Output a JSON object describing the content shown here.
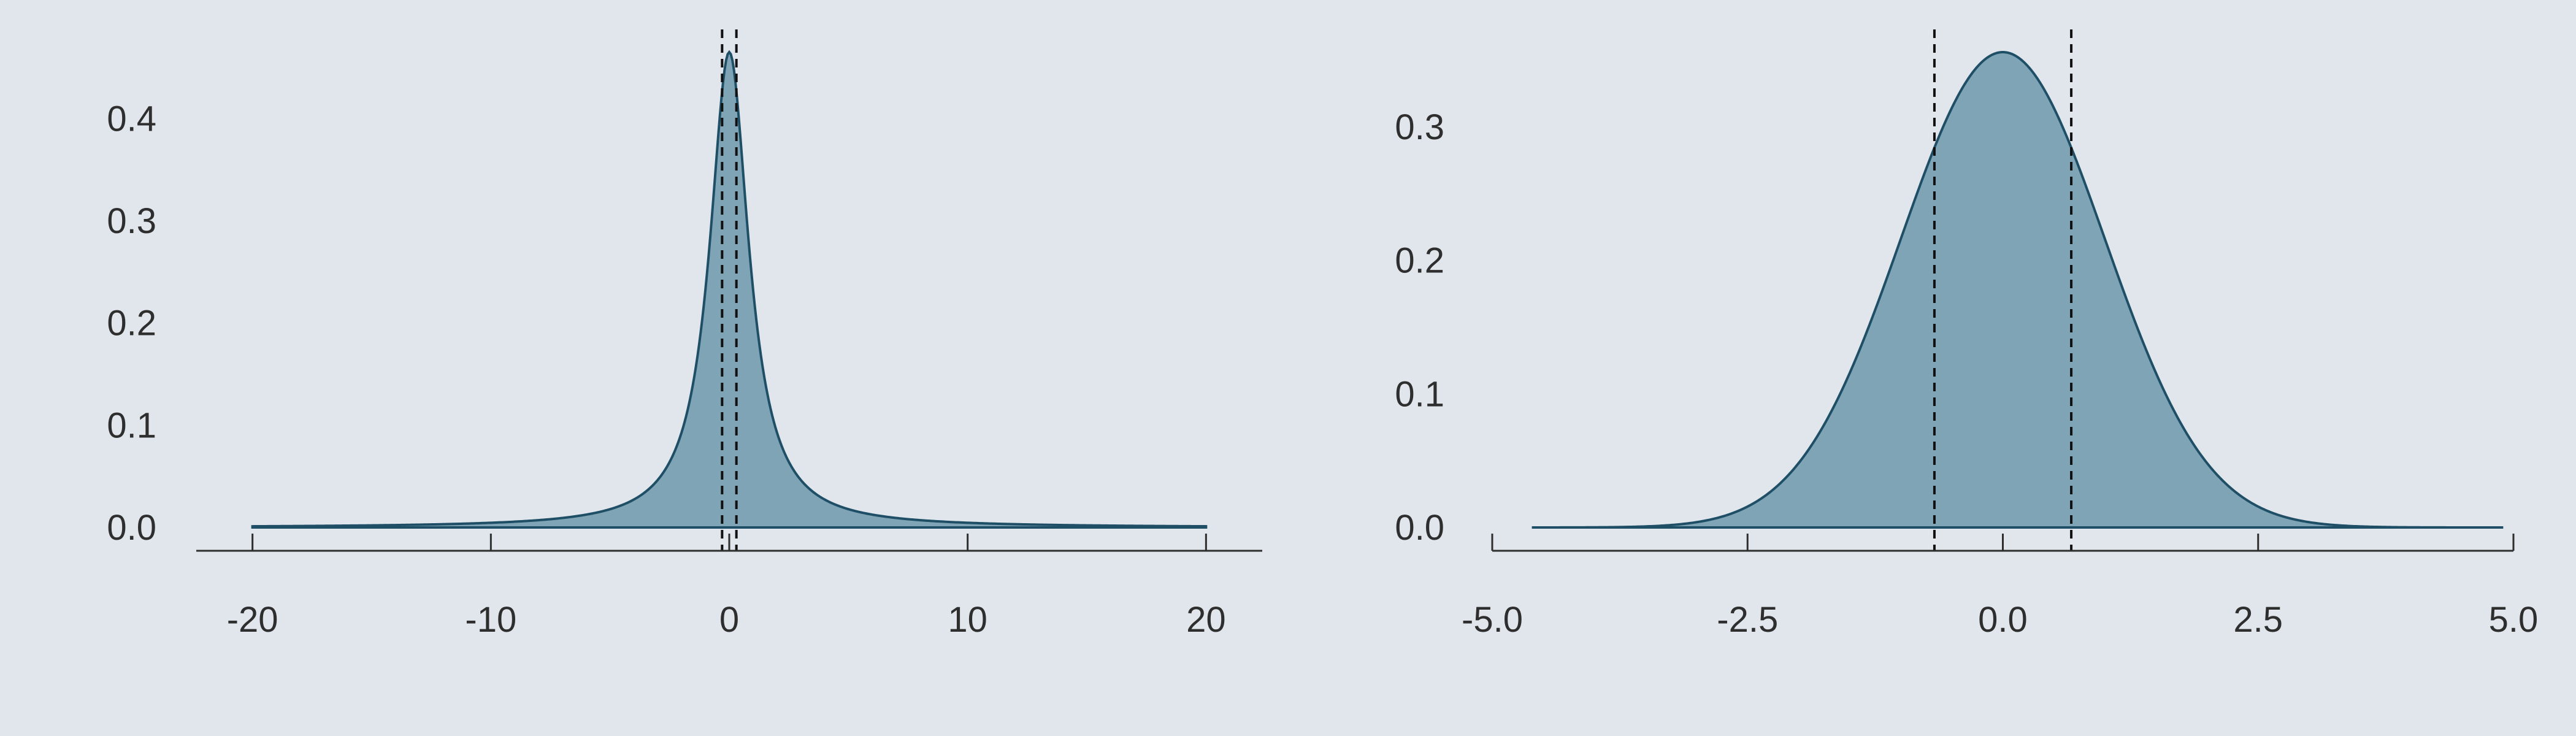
{
  "colors": {
    "background": "#e0e6ec",
    "fill": "#7fa4b5",
    "stroke": "#1f4f66",
    "text": "#2e2e2e"
  },
  "chart_data": [
    {
      "type": "area",
      "distribution": "cauchy",
      "x_range": [
        -20,
        20
      ],
      "xlim": [
        -20.3,
        20.3
      ],
      "ylim": [
        0,
        0.47
      ],
      "grid": false,
      "legend": "none",
      "density_peak": 0.465,
      "xticks": [
        -20,
        -10,
        0,
        10,
        20
      ],
      "xtick_labels": [
        "-20",
        "-10",
        "0",
        "10",
        "20"
      ],
      "yticks": [
        0.0,
        0.1,
        0.2,
        0.3,
        0.4
      ],
      "ytick_labels": [
        "0.0",
        "0.1",
        "0.2",
        "0.3",
        "0.4"
      ],
      "vlines": [
        -0.3,
        0.3
      ]
    },
    {
      "type": "area",
      "distribution": "normal",
      "x_range": [
        -4.6,
        4.9
      ],
      "xlim": [
        -5.0,
        5.0
      ],
      "ylim": [
        0,
        0.36
      ],
      "grid": false,
      "legend": "none",
      "density_peak": 0.356,
      "xticks": [
        -5.0,
        -2.5,
        0.0,
        2.5,
        5.0
      ],
      "xtick_labels": [
        "-5.0",
        "-2.5",
        "0.0",
        "2.5",
        "5.0"
      ],
      "yticks": [
        0.0,
        0.1,
        0.2,
        0.3
      ],
      "ytick_labels": [
        "0.0",
        "0.1",
        "0.2",
        "0.3"
      ],
      "vlines": [
        -0.67,
        0.67
      ]
    }
  ]
}
